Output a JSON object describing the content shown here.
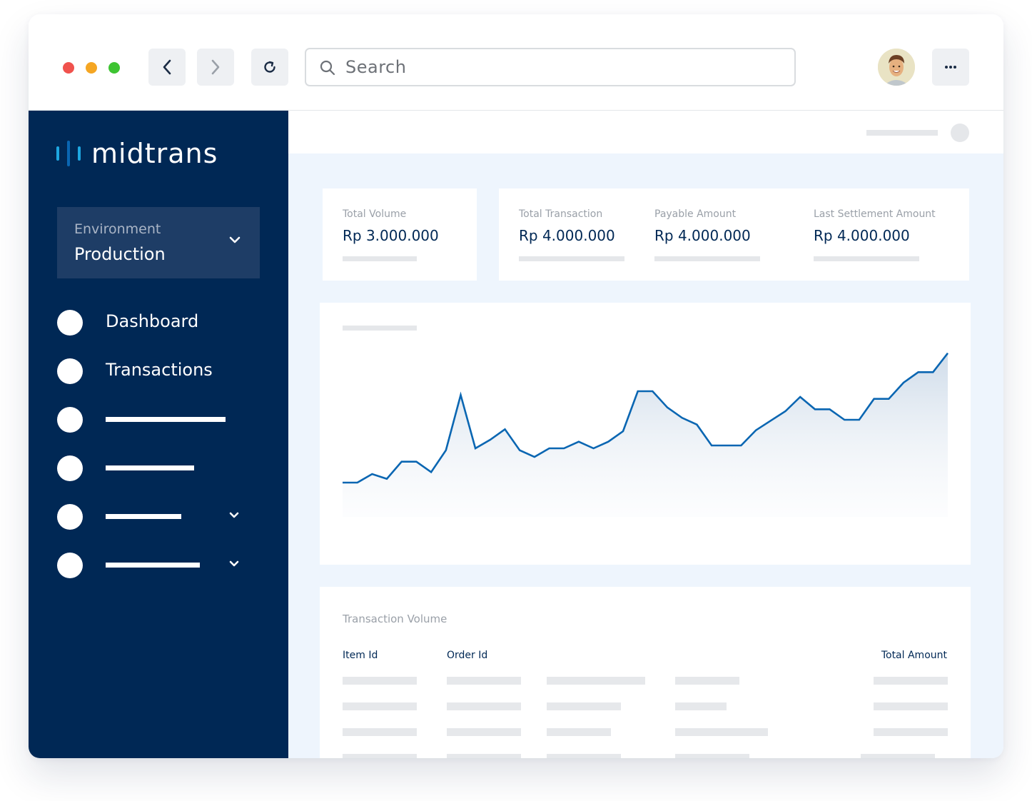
{
  "browser": {
    "search_placeholder": "Search",
    "icons": {
      "back": "chevron-left-icon",
      "forward": "chevron-right-icon",
      "reload": "reload-icon",
      "search": "search-icon",
      "more": "more-horizontal-icon"
    },
    "traffic_lights": [
      "#f0524d",
      "#f5a623",
      "#3ec432"
    ]
  },
  "sidebar": {
    "logo_text": "midtrans",
    "environment": {
      "label": "Environment",
      "value": "Production"
    },
    "nav": [
      {
        "label": "Dashboard"
      },
      {
        "label": "Transactions"
      }
    ]
  },
  "stats": {
    "total_volume": {
      "label": "Total Volume",
      "value": "Rp 3.000.000"
    },
    "total_transaction": {
      "label": "Total Transaction",
      "value": "Rp 4.000.000"
    },
    "payable_amount": {
      "label": "Payable Amount",
      "value": "Rp 4.000.000"
    },
    "last_settlement": {
      "label": "Last Settlement Amount",
      "value": "Rp 4.000.000"
    }
  },
  "chart_data": {
    "type": "area",
    "values": [
      36,
      36,
      45,
      40,
      58,
      58,
      47,
      70,
      128,
      72,
      81,
      92,
      70,
      63,
      72,
      72,
      79,
      72,
      79,
      90,
      132,
      132,
      115,
      104,
      97,
      75,
      75,
      75,
      91,
      101,
      111,
      126,
      113,
      113,
      102,
      102,
      124,
      124,
      141,
      152,
      152,
      172
    ]
  },
  "table": {
    "title": "Transaction Volume",
    "headers": {
      "item_id": "Item Id",
      "order_id": "Order Id",
      "total_amount": "Total Amount"
    }
  },
  "colors": {
    "sidebar": "#002855",
    "accent": "#0a66b2",
    "logo_accent": "#1ea7e1",
    "background": "#eef5fd"
  }
}
